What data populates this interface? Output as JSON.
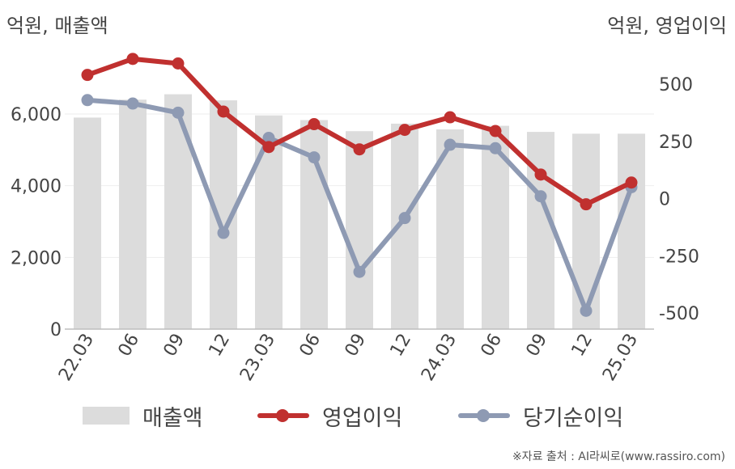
{
  "units": {
    "left": "억원, 매출액",
    "right": "억원, 영업이익"
  },
  "source": "※자료 출처 : AI라씨로(www.rassiro.com)",
  "colors": {
    "revenue_bar": "#dcdcdc",
    "operating_profit": "#c0302f",
    "net_income": "#8e9ab3",
    "axis": "#bdbdbd",
    "grid": "#eeeeee"
  },
  "chart_data": {
    "type": "bar",
    "categories": [
      "22.03",
      "06",
      "09",
      "12",
      "23.03",
      "06",
      "09",
      "12",
      "24.03",
      "06",
      "09",
      "12",
      "25.03"
    ],
    "left_axis": {
      "ticks": [
        0,
        2000,
        4000,
        6000
      ],
      "tick_labels": [
        "0",
        "2,000",
        "4,000",
        "6,000"
      ],
      "range": [
        0,
        7600
      ]
    },
    "right_axis": {
      "ticks": [
        -500,
        -250,
        0,
        250,
        500
      ],
      "tick_labels": [
        "-500",
        "-250",
        "0",
        "250",
        "500"
      ],
      "range": [
        -570,
        620
      ]
    },
    "grid": true,
    "legend_position": "bottom",
    "series": [
      {
        "name": "매출액",
        "type": "bar",
        "axis": "left",
        "values": [
          5900,
          6400,
          6550,
          6380,
          5960,
          5830,
          5520,
          5730,
          5570,
          5670,
          5500,
          5450,
          5450
        ]
      },
      {
        "name": "영업이익",
        "type": "line",
        "axis": "right",
        "values": [
          540,
          610,
          590,
          380,
          225,
          325,
          215,
          300,
          355,
          295,
          105,
          -25,
          70
        ]
      },
      {
        "name": "당기순이익",
        "type": "line",
        "axis": "right",
        "values": [
          430,
          415,
          375,
          -150,
          265,
          180,
          -320,
          -85,
          235,
          220,
          10,
          -490,
          50
        ]
      }
    ]
  }
}
